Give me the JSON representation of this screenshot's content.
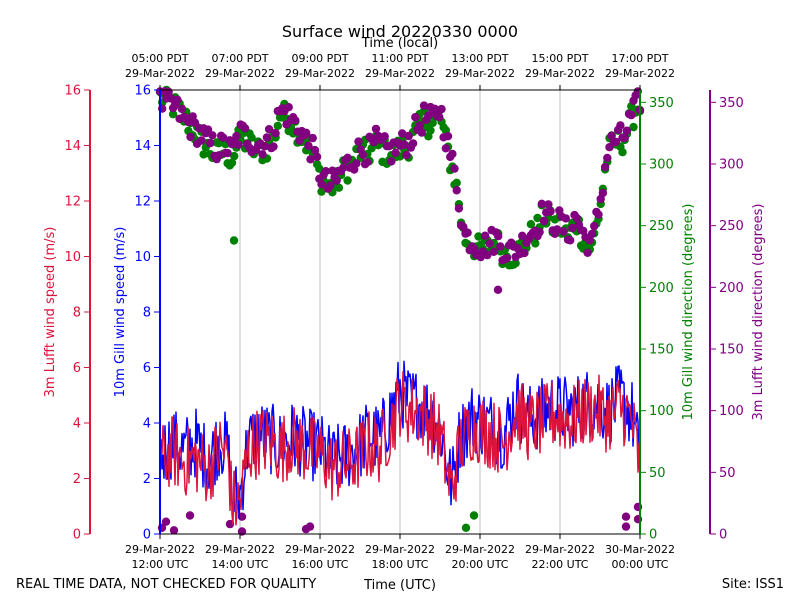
{
  "chart_data": {
    "type": "line",
    "title": "Surface wind 20220330 0000",
    "xlabel": "Time (UTC)",
    "x2label": "Time (local)",
    "footer_left": "REAL TIME DATA, NOT CHECKED FOR QUALITY",
    "footer_right": "Site: ISS1",
    "x_range_hours_utc": [
      12.0,
      24.0
    ],
    "x_ticks_utc": [
      {
        "hour": 12,
        "line1": "29-Mar-2022",
        "line2": "12:00 UTC"
      },
      {
        "hour": 14,
        "line1": "29-Mar-2022",
        "line2": "14:00 UTC"
      },
      {
        "hour": 16,
        "line1": "29-Mar-2022",
        "line2": "16:00 UTC"
      },
      {
        "hour": 18,
        "line1": "29-Mar-2022",
        "line2": "18:00 UTC"
      },
      {
        "hour": 20,
        "line1": "29-Mar-2022",
        "line2": "20:00 UTC"
      },
      {
        "hour": 22,
        "line1": "29-Mar-2022",
        "line2": "22:00 UTC"
      },
      {
        "hour": 24,
        "line1": "30-Mar-2022",
        "line2": "00:00 UTC"
      }
    ],
    "x_ticks_local": [
      {
        "hour": 12,
        "line1": "05:00 PDT",
        "line2": "29-Mar-2022"
      },
      {
        "hour": 14,
        "line1": "07:00 PDT",
        "line2": "29-Mar-2022"
      },
      {
        "hour": 16,
        "line1": "09:00 PDT",
        "line2": "29-Mar-2022"
      },
      {
        "hour": 18,
        "line1": "11:00 PDT",
        "line2": "29-Mar-2022"
      },
      {
        "hour": 20,
        "line1": "13:00 PDT",
        "line2": "29-Mar-2022"
      },
      {
        "hour": 22,
        "line1": "15:00 PDT",
        "line2": "29-Mar-2022"
      },
      {
        "hour": 24,
        "line1": "17:00 PDT",
        "line2": "29-Mar-2022"
      }
    ],
    "axes": {
      "lufft_speed": {
        "label": "3m Lufft wind speed (m/s)",
        "range": [
          0,
          16
        ],
        "ticks": [
          0,
          2,
          4,
          6,
          8,
          10,
          12,
          14,
          16
        ],
        "color": "#dc143c"
      },
      "gill_speed": {
        "label": "10m Gill wind speed (m/s)",
        "range": [
          0,
          16
        ],
        "ticks": [
          0,
          2,
          4,
          6,
          8,
          10,
          12,
          14,
          16
        ],
        "color": "#0000ff"
      },
      "gill_dir": {
        "label": "10m Gill wind direction (degrees)",
        "range": [
          0,
          360
        ],
        "ticks": [
          0,
          50,
          100,
          150,
          200,
          250,
          300,
          350
        ],
        "color": "#008000"
      },
      "lufft_dir": {
        "label": "3m Lufft wind direction (degrees)",
        "range": [
          0,
          360
        ],
        "ticks": [
          0,
          50,
          100,
          150,
          200,
          250,
          300,
          350
        ],
        "color": "#800080"
      }
    },
    "series": [
      {
        "name": "10m Gill wind speed",
        "axis": "gill_speed",
        "kind": "line",
        "color": "#0000ff",
        "knots_hours": [
          12.0,
          12.3,
          12.6,
          12.9,
          13.2,
          13.5,
          13.7,
          13.8,
          14.0,
          14.2,
          14.5,
          14.8,
          15.0,
          15.3,
          15.6,
          16.0,
          16.3,
          16.6,
          16.9,
          17.2,
          17.5,
          17.8,
          18.0,
          18.2,
          18.5,
          18.8,
          19.0,
          19.1,
          19.2,
          19.3,
          19.5,
          19.8,
          20.0,
          20.3,
          20.6,
          20.9,
          21.2,
          21.5,
          21.8,
          22.0,
          22.3,
          22.6,
          22.9,
          23.2,
          23.5,
          23.8,
          24.0
        ],
        "knots_values": [
          2.8,
          3.3,
          3.0,
          3.3,
          2.6,
          3.4,
          3.0,
          1.3,
          1.4,
          3.3,
          3.6,
          3.4,
          3.2,
          3.5,
          3.3,
          3.1,
          2.6,
          2.8,
          3.0,
          3.6,
          3.4,
          4.5,
          5.2,
          4.8,
          4.7,
          4.3,
          3.8,
          3.2,
          2.3,
          1.8,
          3.5,
          4.2,
          4.1,
          3.9,
          3.6,
          4.8,
          4.1,
          4.3,
          4.6,
          4.5,
          4.4,
          4.7,
          4.8,
          4.4,
          4.9,
          4.3,
          2.6
        ]
      },
      {
        "name": "3m Lufft wind speed",
        "axis": "lufft_speed",
        "kind": "line",
        "color": "#dc143c",
        "knots_hours": [
          12.0,
          12.3,
          12.6,
          12.9,
          13.2,
          13.5,
          13.7,
          13.8,
          14.0,
          14.2,
          14.5,
          14.8,
          15.0,
          15.3,
          15.6,
          16.0,
          16.3,
          16.6,
          16.9,
          17.2,
          17.5,
          17.8,
          18.0,
          18.2,
          18.5,
          18.8,
          19.0,
          19.1,
          19.2,
          19.3,
          19.5,
          19.8,
          20.0,
          20.3,
          20.6,
          20.9,
          21.2,
          21.5,
          21.8,
          22.0,
          22.3,
          22.6,
          22.9,
          23.2,
          23.5,
          23.8,
          24.0
        ],
        "knots_values": [
          2.6,
          3.0,
          2.6,
          2.7,
          2.3,
          3.1,
          2.8,
          1.1,
          1.1,
          3.0,
          3.4,
          3.3,
          3.0,
          3.4,
          3.1,
          2.9,
          2.4,
          2.5,
          2.7,
          3.2,
          3.1,
          4.0,
          4.8,
          4.5,
          4.4,
          4.0,
          3.5,
          2.9,
          2.0,
          1.6,
          3.2,
          3.9,
          3.8,
          3.6,
          3.3,
          4.4,
          3.9,
          4.0,
          4.3,
          4.2,
          4.1,
          4.4,
          4.5,
          4.2,
          4.6,
          4.1,
          2.3
        ]
      },
      {
        "name": "10m Gill wind direction",
        "axis": "gill_dir",
        "kind": "scatter",
        "color": "#008000",
        "knots_hours": [
          12.0,
          12.2,
          12.4,
          12.6,
          12.8,
          13.0,
          13.2,
          13.4,
          13.6,
          13.8,
          14.0,
          14.2,
          14.4,
          14.6,
          14.8,
          15.0,
          15.2,
          15.4,
          15.6,
          15.8,
          16.0,
          16.2,
          16.4,
          16.6,
          16.8,
          17.0,
          17.2,
          17.4,
          17.6,
          17.8,
          18.0,
          18.2,
          18.4,
          18.6,
          18.8,
          19.0,
          19.2,
          19.4,
          19.6,
          19.8,
          20.0,
          20.2,
          20.4,
          20.6,
          20.8,
          21.0,
          21.2,
          21.4,
          21.6,
          21.8,
          22.0,
          22.2,
          22.4,
          22.6,
          22.8,
          23.0,
          23.2,
          23.4,
          23.6,
          23.8,
          24.0
        ],
        "knots_values": [
          355,
          352,
          345,
          338,
          330,
          320,
          312,
          308,
          310,
          305,
          320,
          318,
          310,
          312,
          316,
          340,
          338,
          330,
          320,
          310,
          290,
          280,
          283,
          295,
          300,
          310,
          308,
          315,
          310,
          308,
          312,
          315,
          325,
          335,
          332,
          340,
          310,
          285,
          240,
          235,
          230,
          232,
          238,
          228,
          226,
          230,
          240,
          245,
          260,
          250,
          250,
          240,
          255,
          238,
          232,
          265,
          310,
          318,
          320,
          338,
          350
        ],
        "outliers": [
          [
            13.85,
            238
          ],
          [
            19.65,
            5
          ],
          [
            19.85,
            15
          ]
        ]
      },
      {
        "name": "3m Lufft wind direction",
        "axis": "lufft_dir",
        "kind": "scatter",
        "color": "#800080",
        "knots_hours": [
          12.0,
          12.2,
          12.4,
          12.6,
          12.8,
          13.0,
          13.2,
          13.4,
          13.6,
          13.8,
          14.0,
          14.2,
          14.4,
          14.6,
          14.8,
          15.0,
          15.2,
          15.4,
          15.6,
          15.8,
          16.0,
          16.2,
          16.4,
          16.6,
          16.8,
          17.0,
          17.2,
          17.4,
          17.6,
          17.8,
          18.0,
          18.2,
          18.4,
          18.6,
          18.8,
          19.0,
          19.2,
          19.4,
          19.6,
          19.8,
          20.0,
          20.2,
          20.4,
          20.6,
          20.8,
          21.0,
          21.2,
          21.4,
          21.6,
          21.8,
          22.0,
          22.2,
          22.4,
          22.6,
          22.8,
          23.0,
          23.2,
          23.4,
          23.6,
          23.8,
          24.0
        ],
        "knots_values": [
          350,
          348,
          345,
          336,
          330,
          325,
          318,
          312,
          315,
          310,
          325,
          322,
          315,
          318,
          320,
          343,
          340,
          332,
          322,
          312,
          292,
          282,
          286,
          298,
          303,
          312,
          310,
          318,
          312,
          310,
          315,
          318,
          328,
          338,
          335,
          345,
          315,
          288,
          243,
          238,
          233,
          235,
          240,
          231,
          229,
          233,
          243,
          248,
          263,
          253,
          253,
          243,
          258,
          241,
          235,
          268,
          313,
          320,
          322,
          340,
          352
        ],
        "outliers": [
          [
            12.05,
            5
          ],
          [
            12.15,
            10
          ],
          [
            12.35,
            3
          ],
          [
            12.75,
            15
          ],
          [
            13.75,
            8
          ],
          [
            14.05,
            2
          ],
          [
            14.05,
            14
          ],
          [
            15.65,
            4
          ],
          [
            15.75,
            6
          ],
          [
            20.45,
            198
          ],
          [
            23.65,
            6
          ],
          [
            23.65,
            14
          ],
          [
            23.95,
            22
          ],
          [
            23.95,
            12
          ]
        ]
      }
    ]
  }
}
